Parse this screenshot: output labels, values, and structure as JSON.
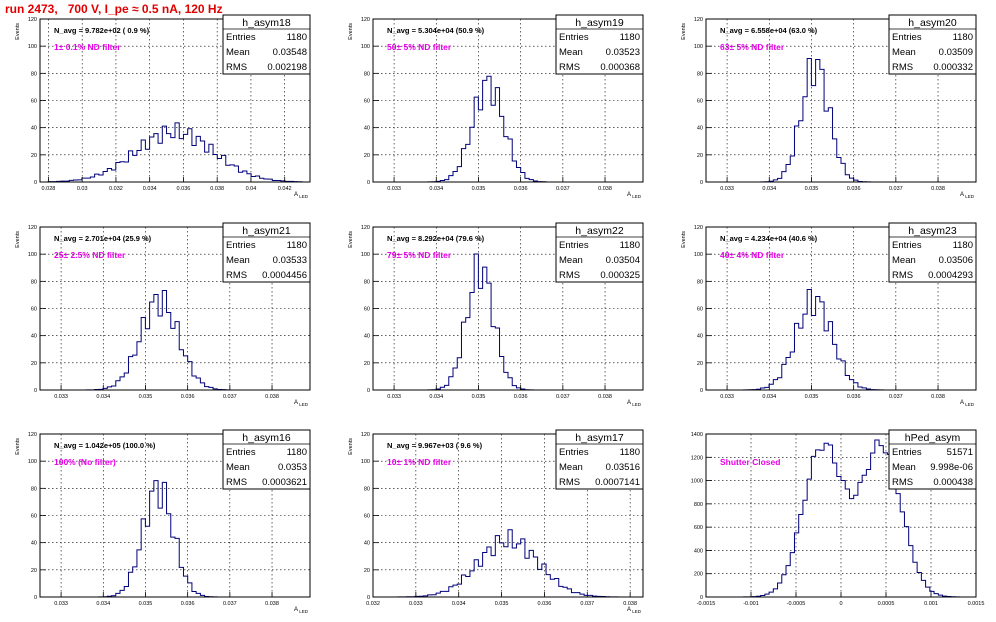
{
  "header": {
    "run_title": "run 2473,   700 V, I_pe ≈ 0.5 nA, 120 Hz"
  },
  "colors": {
    "histogram": "#00007a",
    "filter_label": "#e800e8",
    "title": "#e00000",
    "frame": "#000000",
    "grid": "#000000"
  },
  "stats_labels": {
    "entries": "Entries",
    "mean": "Mean",
    "rms": "RMS"
  },
  "chart_data": [
    {
      "type": "histogram",
      "name": "h_asym18",
      "navg": "N_avg = 9.782e+02 ( 0.9 %)",
      "filter": "1± 0.1% ND filter",
      "entries": "1180",
      "mean": "0.03548",
      "rms": "0.002198",
      "xlabel": "A_LED",
      "ylabel": "Events",
      "xlim": [
        0.0275,
        0.0435
      ],
      "ylim": [
        0,
        120
      ],
      "xticks": [
        0.028,
        0.03,
        0.032,
        0.034,
        0.036,
        0.038,
        0.04,
        0.042
      ],
      "xtick_labels": [
        "0.028",
        "0.03",
        "0.032",
        "0.034",
        "0.036",
        "0.038",
        "0.04",
        "0.042"
      ],
      "yticks": [
        0,
        20,
        40,
        60,
        80,
        100,
        120
      ],
      "ytick_labels": [
        "0",
        "20",
        "40",
        "60",
        "80",
        "100",
        "120"
      ],
      "grid": true,
      "gauss": {
        "mean": 0.03548,
        "sigma": 0.0023,
        "peak": 37
      }
    },
    {
      "type": "histogram",
      "name": "h_asym19",
      "navg": "N_avg = 5.304e+04 (50.9 %)",
      "filter": "50± 5% ND filter",
      "entries": "1180",
      "mean": "0.03523",
      "rms": "0.000368",
      "xlabel": "A_LED",
      "ylabel": "Events",
      "xlim": [
        0.0325,
        0.0389
      ],
      "ylim": [
        0,
        120
      ],
      "xticks": [
        0.033,
        0.034,
        0.035,
        0.036,
        0.037,
        0.038
      ],
      "xtick_labels": [
        "0.033",
        "0.034",
        "0.035",
        "0.036",
        "0.037",
        "0.038"
      ],
      "yticks": [
        0,
        20,
        40,
        60,
        80,
        100,
        120
      ],
      "ytick_labels": [
        "0",
        "20",
        "40",
        "60",
        "80",
        "100",
        "120"
      ],
      "grid": true,
      "gauss": {
        "mean": 0.03523,
        "sigma": 0.00037,
        "peak": 72
      }
    },
    {
      "type": "histogram",
      "name": "h_asym20",
      "navg": "N_avg = 6.558e+04 (63.0 %)",
      "filter": "63± 5% ND filter",
      "entries": "1180",
      "mean": "0.03509",
      "rms": "0.000332",
      "xlabel": "A_LED",
      "ylabel": "Events",
      "xlim": [
        0.0325,
        0.0389
      ],
      "ylim": [
        0,
        120
      ],
      "xticks": [
        0.033,
        0.034,
        0.035,
        0.036,
        0.037,
        0.038
      ],
      "xtick_labels": [
        "0.033",
        "0.034",
        "0.035",
        "0.036",
        "0.037",
        "0.038"
      ],
      "yticks": [
        0,
        20,
        40,
        60,
        80,
        100,
        120
      ],
      "ytick_labels": [
        "0",
        "20",
        "40",
        "60",
        "80",
        "100",
        "120"
      ],
      "grid": true,
      "gauss": {
        "mean": 0.03509,
        "sigma": 0.00033,
        "peak": 86
      }
    },
    {
      "type": "histogram",
      "name": "h_asym21",
      "navg": "N_avg = 2.701e+04 (25.9 %)",
      "filter": "25± 2.5% ND filter",
      "entries": "1180",
      "mean": "0.03533",
      "rms": "0.0004456",
      "xlabel": "A_LED",
      "ylabel": "Events",
      "xlim": [
        0.0325,
        0.0389
      ],
      "ylim": [
        0,
        120
      ],
      "xticks": [
        0.033,
        0.034,
        0.035,
        0.036,
        0.037,
        0.038
      ],
      "xtick_labels": [
        "0.033",
        "0.034",
        "0.035",
        "0.036",
        "0.037",
        "0.038"
      ],
      "yticks": [
        0,
        20,
        40,
        60,
        80,
        100,
        120
      ],
      "ytick_labels": [
        "0",
        "20",
        "40",
        "60",
        "80",
        "100",
        "120"
      ],
      "grid": true,
      "gauss": {
        "mean": 0.03533,
        "sigma": 0.00045,
        "peak": 66
      }
    },
    {
      "type": "histogram",
      "name": "h_asym22",
      "navg": "N_avg = 8.292e+04 (79.6 %)",
      "filter": "79± 5% ND filter",
      "entries": "1180",
      "mean": "0.03504",
      "rms": "0.000325",
      "xlabel": "A_LED",
      "ylabel": "Events",
      "xlim": [
        0.0325,
        0.0389
      ],
      "ylim": [
        0,
        120
      ],
      "xticks": [
        0.033,
        0.034,
        0.035,
        0.036,
        0.037,
        0.038
      ],
      "xtick_labels": [
        "0.033",
        "0.034",
        "0.035",
        "0.036",
        "0.037",
        "0.038"
      ],
      "yticks": [
        0,
        20,
        40,
        60,
        80,
        100,
        120
      ],
      "ytick_labels": [
        "0",
        "20",
        "40",
        "60",
        "80",
        "100",
        "120"
      ],
      "grid": true,
      "gauss": {
        "mean": 0.03504,
        "sigma": 0.00032,
        "peak": 90
      }
    },
    {
      "type": "histogram",
      "name": "h_asym23",
      "navg": "N_avg = 4.234e+04 (40.6 %)",
      "filter": "40± 4% ND filter",
      "entries": "1180",
      "mean": "0.03506",
      "rms": "0.0004293",
      "xlabel": "A_LED",
      "ylabel": "Events",
      "xlim": [
        0.0325,
        0.0389
      ],
      "ylim": [
        0,
        120
      ],
      "xticks": [
        0.033,
        0.034,
        0.035,
        0.036,
        0.037,
        0.038
      ],
      "xtick_labels": [
        "0.033",
        "0.034",
        "0.035",
        "0.036",
        "0.037",
        "0.038"
      ],
      "yticks": [
        0,
        20,
        40,
        60,
        80,
        100,
        120
      ],
      "ytick_labels": [
        "0",
        "20",
        "40",
        "60",
        "80",
        "100",
        "120"
      ],
      "grid": true,
      "gauss": {
        "mean": 0.03506,
        "sigma": 0.00043,
        "peak": 66
      }
    },
    {
      "type": "histogram",
      "name": "h_asym16",
      "navg": "N_avg = 1.042e+05 (100.0 %)",
      "filter": "100% (No filter)",
      "entries": "1180",
      "mean": "0.0353",
      "rms": "0.0003621",
      "xlabel": "A_LED",
      "ylabel": "Events",
      "xlim": [
        0.0325,
        0.0389
      ],
      "ylim": [
        0,
        120
      ],
      "xticks": [
        0.033,
        0.034,
        0.035,
        0.036,
        0.037,
        0.038
      ],
      "xtick_labels": [
        "0.033",
        "0.034",
        "0.035",
        "0.036",
        "0.037",
        "0.038"
      ],
      "yticks": [
        0,
        20,
        40,
        60,
        80,
        100,
        120
      ],
      "ytick_labels": [
        "0",
        "20",
        "40",
        "60",
        "80",
        "100",
        "120"
      ],
      "grid": true,
      "gauss": {
        "mean": 0.0353,
        "sigma": 0.00036,
        "peak": 80
      }
    },
    {
      "type": "histogram",
      "name": "h_asym17",
      "navg": "N_avg = 9.967e+03 ( 9.6 %)",
      "filter": "10± 1% ND filter",
      "entries": "1180",
      "mean": "0.03516",
      "rms": "0.0007141",
      "xlabel": "A_LED",
      "ylabel": "Events",
      "xlim": [
        0.032,
        0.0383
      ],
      "ylim": [
        0,
        120
      ],
      "xticks": [
        0.032,
        0.033,
        0.034,
        0.035,
        0.036,
        0.037,
        0.038
      ],
      "xtick_labels": [
        "0.032",
        "0.033",
        "0.034",
        "0.035",
        "0.036",
        "0.037",
        "0.038"
      ],
      "yticks": [
        0,
        20,
        40,
        60,
        80,
        100,
        120
      ],
      "ytick_labels": [
        "0",
        "20",
        "40",
        "60",
        "80",
        "100",
        "120"
      ],
      "grid": true,
      "gauss": {
        "mean": 0.03516,
        "sigma": 0.0007,
        "peak": 42
      }
    },
    {
      "type": "histogram",
      "name": "hPed_asym",
      "navg": "",
      "filter": "Shutter Closed",
      "entries": "51571",
      "mean": "9.998e-06",
      "rms": "0.000438",
      "xlabel": "",
      "ylabel": "",
      "xlim": [
        -0.0015,
        0.0015
      ],
      "ylim": [
        0,
        1400
      ],
      "xticks": [
        -0.0015,
        -0.001,
        -0.0005,
        0,
        0.0005,
        0.001,
        0.0015
      ],
      "xtick_labels": [
        "-0.0015",
        "-0.001",
        "-0.0005",
        "0",
        "0.0005",
        "0.001",
        "0.0015"
      ],
      "yticks": [
        0,
        200,
        400,
        600,
        800,
        1000,
        1200,
        1400
      ],
      "ytick_labels": [
        "0",
        "200",
        "400",
        "600",
        "800",
        "1000",
        "1200",
        "1400"
      ],
      "grid": true,
      "double_peak": {
        "peaks": [
          -0.0002,
          0.00045
        ],
        "sigma": 0.00022,
        "peak": 1300
      }
    }
  ]
}
